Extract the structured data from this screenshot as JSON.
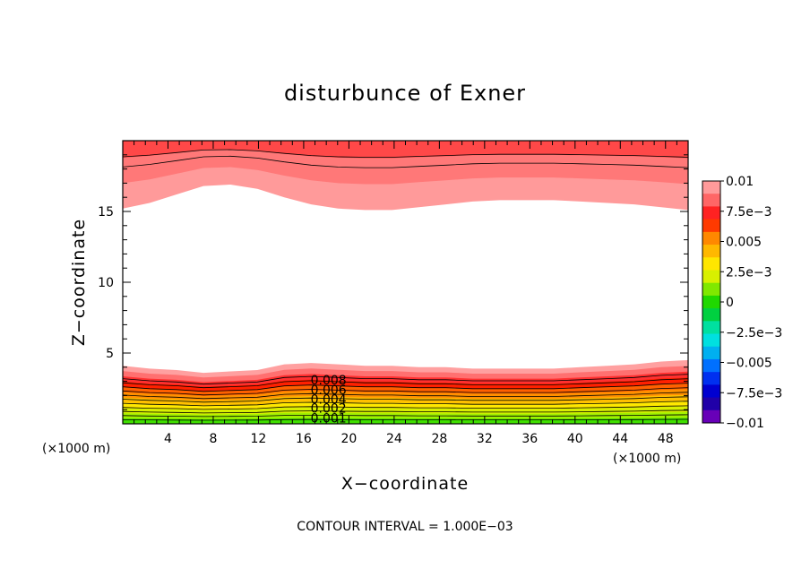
{
  "chart_data": {
    "type": "contour",
    "title": "disturbunce of Exner",
    "xlabel": "X−coordinate",
    "ylabel": "Z−coordinate",
    "x_unit_label": "(×1000 m)",
    "z_unit_label": "(×1000 m)",
    "xlim": [
      0,
      50
    ],
    "ylim": [
      0,
      20
    ],
    "x_ticks": [
      4,
      8,
      12,
      16,
      20,
      24,
      28,
      32,
      36,
      40,
      44,
      48
    ],
    "y_ticks": [
      5,
      10,
      15
    ],
    "contour_interval_text": "CONTOUR INTERVAL = 1.000E−03",
    "contour_labels": [
      {
        "text": "0.008",
        "x": 18.2,
        "z": 3.1
      },
      {
        "text": "0.006",
        "x": 18.2,
        "z": 2.4
      },
      {
        "text": "0.004",
        "x": 18.2,
        "z": 1.75
      },
      {
        "text": "0.002",
        "x": 18.2,
        "z": 1.1
      },
      {
        "text": "0.001",
        "x": 18.2,
        "z": 0.4
      }
    ],
    "colorbar": {
      "labels": [
        "0.01",
        "7.5e−3",
        "0.005",
        "2.5e−3",
        "0",
        "−2.5e−3",
        "−0.005",
        "−7.5e−3",
        "−0.01"
      ],
      "colors_top_to_bottom": [
        "#ff9a9a",
        "#ff6666",
        "#ff2222",
        "#ff3a00",
        "#ff8800",
        "#ffb800",
        "#ffe600",
        "#d8f000",
        "#80e800",
        "#20d800",
        "#00d040",
        "#00e0a0",
        "#00e0e0",
        "#00b0f0",
        "#0070ff",
        "#0030f0",
        "#0000d0",
        "#2000a8",
        "#6800b8"
      ]
    },
    "fields": {
      "top_level_bands": [
        "#ff9a9a",
        "#ff7878",
        "#ff4848"
      ],
      "bottom_level_bands": [
        "#ffa0a0",
        "#ff7070",
        "#ff3030",
        "#ff2000",
        "#ff6000",
        "#ff9000",
        "#ffc000",
        "#ffe800",
        "#d8f000",
        "#a0f000",
        "#40e000"
      ],
      "top_boundary_z": [
        15.2,
        15.6,
        16.2,
        16.8,
        16.9,
        16.6,
        16.0,
        15.5,
        15.2,
        15.1,
        15.1,
        15.3,
        15.5,
        15.7,
        15.8,
        15.8,
        15.8,
        15.7,
        15.6,
        15.5,
        15.3,
        15.1
      ],
      "bottom_boundary_z": [
        4.1,
        3.9,
        3.8,
        3.6,
        3.7,
        3.8,
        4.2,
        4.3,
        4.2,
        4.1,
        4.1,
        4.0,
        4.0,
        3.9,
        3.9,
        3.9,
        3.9,
        4.0,
        4.1,
        4.2,
        4.4,
        4.5
      ]
    }
  }
}
